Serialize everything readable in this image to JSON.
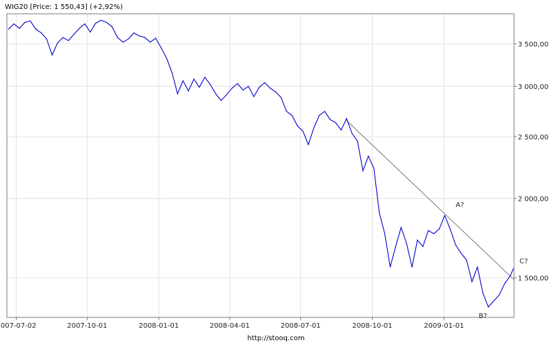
{
  "header": {
    "title": "WIG20 [Price: 1 550,43] (+2,92%)"
  },
  "footer": {
    "url": "http://stooq.com"
  },
  "colors": {
    "series": "#0000cc",
    "trendline": "#555555",
    "grid": "#e2e2e2",
    "frame": "#7a7a7a"
  },
  "chart_data": {
    "type": "line",
    "title": "WIG20 [Price: 1 550,43] (+2,92%)",
    "xlabel": "",
    "ylabel": "",
    "y_scale": "log",
    "ylim": [
      1300,
      3900
    ],
    "xlim": [
      "2007-06-20",
      "2009-04-01"
    ],
    "grid": true,
    "legend": "none",
    "x_ticks": [
      {
        "date": "2007-07-02",
        "label": "2007-07-02"
      },
      {
        "date": "2007-10-01",
        "label": "2007-10-01"
      },
      {
        "date": "2008-01-01",
        "label": "2008-01-01"
      },
      {
        "date": "2008-04-01",
        "label": "2008-04-01"
      },
      {
        "date": "2008-07-01",
        "label": "2008-07-01"
      },
      {
        "date": "2008-10-01",
        "label": "2008-10-01"
      },
      {
        "date": "2009-01-01",
        "label": "2009-01-01"
      }
    ],
    "y_ticks": [
      {
        "value": 1500,
        "label": "1 500,00"
      },
      {
        "value": 2000,
        "label": "2 000,00"
      },
      {
        "value": 2500,
        "label": "2 500,00"
      },
      {
        "value": 3000,
        "label": "3 000,00"
      },
      {
        "value": 3500,
        "label": "3 500,00"
      }
    ],
    "series": [
      {
        "values": [
          [
            "2007-06-22",
            3690
          ],
          [
            "2007-06-29",
            3760
          ],
          [
            "2007-07-06",
            3700
          ],
          [
            "2007-07-13",
            3780
          ],
          [
            "2007-07-20",
            3800
          ],
          [
            "2007-07-27",
            3690
          ],
          [
            "2007-08-03",
            3640
          ],
          [
            "2007-08-10",
            3560
          ],
          [
            "2007-08-17",
            3360
          ],
          [
            "2007-08-24",
            3510
          ],
          [
            "2007-08-31",
            3580
          ],
          [
            "2007-09-07",
            3540
          ],
          [
            "2007-09-14",
            3620
          ],
          [
            "2007-09-21",
            3700
          ],
          [
            "2007-09-28",
            3760
          ],
          [
            "2007-10-05",
            3650
          ],
          [
            "2007-10-12",
            3770
          ],
          [
            "2007-10-19",
            3810
          ],
          [
            "2007-10-26",
            3780
          ],
          [
            "2007-11-02",
            3720
          ],
          [
            "2007-11-09",
            3580
          ],
          [
            "2007-11-16",
            3520
          ],
          [
            "2007-11-23",
            3560
          ],
          [
            "2007-11-30",
            3640
          ],
          [
            "2007-12-07",
            3600
          ],
          [
            "2007-12-14",
            3580
          ],
          [
            "2007-12-21",
            3520
          ],
          [
            "2007-12-28",
            3570
          ],
          [
            "2008-01-04",
            3450
          ],
          [
            "2008-01-11",
            3320
          ],
          [
            "2008-01-18",
            3150
          ],
          [
            "2008-01-25",
            2920
          ],
          [
            "2008-02-01",
            3060
          ],
          [
            "2008-02-08",
            2950
          ],
          [
            "2008-02-15",
            3080
          ],
          [
            "2008-02-22",
            2990
          ],
          [
            "2008-02-29",
            3100
          ],
          [
            "2008-03-07",
            3020
          ],
          [
            "2008-03-14",
            2920
          ],
          [
            "2008-03-21",
            2850
          ],
          [
            "2008-03-28",
            2910
          ],
          [
            "2008-04-04",
            2980
          ],
          [
            "2008-04-11",
            3030
          ],
          [
            "2008-04-18",
            2960
          ],
          [
            "2008-04-25",
            3000
          ],
          [
            "2008-05-02",
            2890
          ],
          [
            "2008-05-09",
            2990
          ],
          [
            "2008-05-16",
            3040
          ],
          [
            "2008-05-23",
            2980
          ],
          [
            "2008-05-30",
            2940
          ],
          [
            "2008-06-06",
            2880
          ],
          [
            "2008-06-13",
            2740
          ],
          [
            "2008-06-20",
            2700
          ],
          [
            "2008-06-27",
            2600
          ],
          [
            "2008-07-04",
            2550
          ],
          [
            "2008-07-11",
            2430
          ],
          [
            "2008-07-18",
            2580
          ],
          [
            "2008-07-25",
            2700
          ],
          [
            "2008-08-01",
            2740
          ],
          [
            "2008-08-08",
            2660
          ],
          [
            "2008-08-15",
            2630
          ],
          [
            "2008-08-22",
            2560
          ],
          [
            "2008-08-29",
            2670
          ],
          [
            "2008-09-05",
            2530
          ],
          [
            "2008-09-12",
            2460
          ],
          [
            "2008-09-19",
            2210
          ],
          [
            "2008-09-26",
            2330
          ],
          [
            "2008-10-03",
            2230
          ],
          [
            "2008-10-10",
            1900
          ],
          [
            "2008-10-17",
            1760
          ],
          [
            "2008-10-24",
            1560
          ],
          [
            "2008-10-31",
            1680
          ],
          [
            "2008-11-07",
            1800
          ],
          [
            "2008-11-14",
            1700
          ],
          [
            "2008-11-21",
            1560
          ],
          [
            "2008-11-28",
            1720
          ],
          [
            "2008-12-05",
            1680
          ],
          [
            "2008-12-12",
            1780
          ],
          [
            "2008-12-19",
            1760
          ],
          [
            "2008-12-26",
            1790
          ],
          [
            "2009-01-02",
            1880
          ],
          [
            "2009-01-09",
            1790
          ],
          [
            "2009-01-16",
            1690
          ],
          [
            "2009-01-23",
            1640
          ],
          [
            "2009-01-30",
            1600
          ],
          [
            "2009-02-06",
            1480
          ],
          [
            "2009-02-13",
            1560
          ],
          [
            "2009-02-20",
            1420
          ],
          [
            "2009-02-27",
            1350
          ],
          [
            "2009-03-06",
            1380
          ],
          [
            "2009-03-13",
            1410
          ],
          [
            "2009-03-20",
            1470
          ],
          [
            "2009-03-27",
            1510
          ],
          [
            "2009-03-31",
            1550
          ]
        ]
      }
    ],
    "trendline": {
      "from": [
        "2008-08-29",
        2650
      ],
      "to": [
        "2009-04-01",
        1490
      ]
    },
    "annotations": [
      {
        "date": "2009-01-09",
        "value": 1900,
        "text": "A?"
      },
      {
        "date": "2009-02-27",
        "value": 1350,
        "text": "B?"
      },
      {
        "date": "2009-03-31",
        "value": 1550,
        "text": "C?"
      }
    ]
  }
}
